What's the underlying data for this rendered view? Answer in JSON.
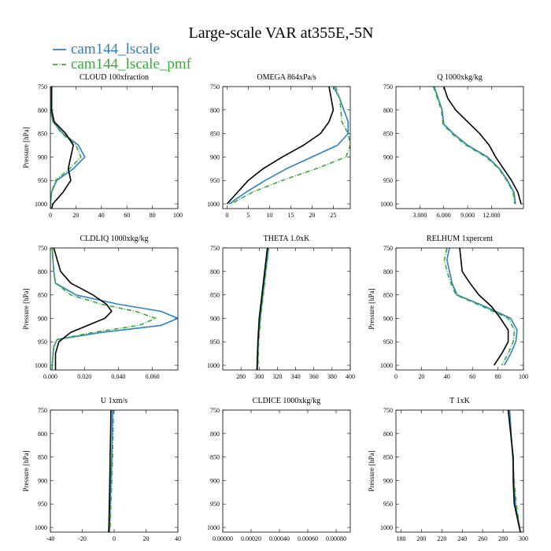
{
  "figure_title": "Large-scale VAR at355E,-5N",
  "legend": [
    {
      "name": "cam144_lscale",
      "color": "#2f7fc1",
      "dash": "none"
    },
    {
      "name": "cam144_lscale_pmf",
      "color": "#3aa83a",
      "dash": "6,2,1,2"
    }
  ],
  "reference_color": "#000000",
  "chart_data": [
    {
      "type": "line",
      "title": "CLOUD 100xfraction",
      "ylabel": "Pressure [hPa]",
      "xlim": [
        0,
        100
      ],
      "xticks": [
        0,
        20,
        40,
        60,
        80,
        100
      ],
      "xtick_labels": [
        "0",
        "20",
        "40",
        "60",
        "80",
        "100"
      ],
      "ylim": [
        1010,
        750
      ],
      "yticks": [
        750,
        800,
        850,
        900,
        950,
        1000
      ],
      "ytick_labels": [
        "750",
        "800",
        "850",
        "900",
        "950",
        "1000"
      ],
      "series": [
        {
          "role": "blue",
          "y": [
            750,
            800,
            825,
            850,
            875,
            900,
            925,
            950,
            975,
            1000,
            1010
          ],
          "x": [
            0,
            0,
            2,
            10,
            22,
            27,
            18,
            5,
            1,
            0,
            0
          ]
        },
        {
          "role": "green",
          "y": [
            750,
            800,
            825,
            850,
            875,
            900,
            925,
            950,
            975,
            1000,
            1010
          ],
          "x": [
            0,
            0,
            2,
            9,
            20,
            24,
            15,
            4,
            1,
            0,
            0
          ]
        },
        {
          "role": "black",
          "y": [
            750,
            800,
            825,
            850,
            875,
            900,
            925,
            950,
            975,
            1000,
            1010
          ],
          "x": [
            1,
            1,
            3,
            12,
            18,
            16,
            14,
            16,
            10,
            2,
            1
          ]
        }
      ]
    },
    {
      "type": "line",
      "title": "OMEGA 864xPa/s",
      "ylabel": "",
      "xlim": [
        -1,
        29
      ],
      "xticks": [
        0,
        5,
        10,
        15,
        20,
        25
      ],
      "xtick_labels": [
        "0",
        "5",
        "10",
        "15",
        "20",
        "25"
      ],
      "ylim": [
        1010,
        750
      ],
      "yticks": [
        750,
        800,
        850,
        900,
        950,
        1000
      ],
      "ytick_labels": [
        "750",
        "800",
        "850",
        "900",
        "950",
        "1000"
      ],
      "series": [
        {
          "role": "blue",
          "y": [
            750,
            775,
            800,
            825,
            850,
            875,
            900,
            925,
            950,
            975,
            1000
          ],
          "x": [
            25,
            26.5,
            27.5,
            28.5,
            28.5,
            26,
            20,
            14,
            9,
            4.5,
            0.5
          ]
        },
        {
          "role": "green",
          "y": [
            750,
            775,
            800,
            825,
            850,
            875,
            900,
            925,
            950,
            975,
            1000
          ],
          "x": [
            25.5,
            26.5,
            26.8,
            27,
            28.5,
            29,
            28,
            21,
            13,
            6,
            1
          ]
        },
        {
          "role": "black",
          "y": [
            750,
            775,
            800,
            825,
            850,
            875,
            900,
            925,
            950,
            975,
            1000
          ],
          "x": [
            24,
            24.5,
            25,
            24,
            22,
            18,
            13,
            8.5,
            5,
            2.5,
            0
          ]
        }
      ]
    },
    {
      "type": "line",
      "title": "Q 1000xkg/kg",
      "ylabel": "",
      "xlim": [
        0,
        16
      ],
      "xticks": [
        3,
        6,
        9,
        12
      ],
      "xtick_labels": [
        "3.000",
        "6.000",
        "9.000",
        "12.000"
      ],
      "ylim": [
        1010,
        750
      ],
      "yticks": [
        750,
        800,
        850,
        900,
        950,
        1000
      ],
      "ytick_labels": [
        "750",
        "800",
        "850",
        "900",
        "950",
        "1000"
      ],
      "series": [
        {
          "role": "blue",
          "y": [
            750,
            775,
            800,
            830,
            850,
            875,
            900,
            925,
            950,
            975,
            1000
          ],
          "x": [
            4.8,
            5.3,
            5.8,
            6.0,
            7.2,
            9.0,
            11.5,
            13.0,
            14.0,
            14.8,
            15.0
          ]
        },
        {
          "role": "green",
          "y": [
            750,
            775,
            800,
            830,
            850,
            875,
            900,
            925,
            950,
            975,
            1000
          ],
          "x": [
            4.7,
            5.2,
            5.7,
            5.9,
            7.0,
            8.8,
            11.3,
            12.9,
            13.9,
            14.7,
            14.9
          ]
        },
        {
          "role": "black",
          "y": [
            750,
            775,
            800,
            825,
            850,
            875,
            900,
            925,
            950,
            975,
            1000
          ],
          "x": [
            6.0,
            6.5,
            7.5,
            9.0,
            10.5,
            11.7,
            12.5,
            13.5,
            14.5,
            15.3,
            15.7
          ]
        }
      ]
    },
    {
      "type": "line",
      "title": "CLDLIQ 1000xkg/kg",
      "ylabel": "Pressure [hPa]",
      "xlim": [
        0,
        0.075
      ],
      "xticks": [
        0,
        0.02,
        0.04,
        0.06
      ],
      "xtick_labels": [
        "0.000",
        "0.020",
        "0.040",
        "0.060"
      ],
      "ylim": [
        1010,
        750
      ],
      "yticks": [
        750,
        800,
        850,
        900,
        950,
        1000
      ],
      "ytick_labels": [
        "750",
        "800",
        "850",
        "900",
        "950",
        "1000"
      ],
      "series": [
        {
          "role": "blue",
          "y": [
            750,
            800,
            825,
            850,
            870,
            885,
            900,
            915,
            930,
            945,
            960,
            1000,
            1010
          ],
          "x": [
            0.001,
            0.002,
            0.003,
            0.015,
            0.04,
            0.065,
            0.075,
            0.065,
            0.03,
            0.004,
            0.002,
            0.001,
            0.001
          ]
        },
        {
          "role": "green",
          "y": [
            750,
            800,
            825,
            850,
            870,
            885,
            900,
            915,
            930,
            945,
            960,
            1000,
            1010
          ],
          "x": [
            0.001,
            0.002,
            0.003,
            0.012,
            0.03,
            0.05,
            0.062,
            0.052,
            0.025,
            0.004,
            0.002,
            0.001,
            0.001
          ]
        },
        {
          "role": "black",
          "y": [
            750,
            800,
            825,
            850,
            870,
            885,
            900,
            915,
            930,
            950,
            975,
            1000,
            1010
          ],
          "x": [
            0.002,
            0.006,
            0.012,
            0.025,
            0.033,
            0.036,
            0.032,
            0.022,
            0.012,
            0.005,
            0.003,
            0.003,
            0.003
          ]
        }
      ]
    },
    {
      "type": "line",
      "title": "THETA 1.0xK",
      "ylabel": "",
      "xlim": [
        260,
        400
      ],
      "xticks": [
        280,
        300,
        320,
        340,
        360,
        380,
        400
      ],
      "xtick_labels": [
        "280",
        "300",
        "320",
        "340",
        "360",
        "380",
        "400"
      ],
      "ylim": [
        1010,
        750
      ],
      "yticks": [
        750,
        800,
        850,
        900,
        950,
        1000
      ],
      "ytick_labels": [
        "750",
        "800",
        "850",
        "900",
        "950",
        "1000"
      ],
      "series": [
        {
          "role": "blue",
          "y": [
            750,
            800,
            850,
            900,
            950,
            1010
          ],
          "x": [
            310,
            307,
            304,
            301,
            299,
            298
          ]
        },
        {
          "role": "green",
          "y": [
            750,
            800,
            850,
            900,
            950,
            1010
          ],
          "x": [
            310.5,
            307.5,
            304.5,
            301.5,
            299.5,
            298.5
          ]
        },
        {
          "role": "black",
          "y": [
            750,
            800,
            850,
            900,
            950,
            1010
          ],
          "x": [
            309,
            306,
            303,
            300,
            298.5,
            297.5
          ]
        }
      ]
    },
    {
      "type": "line",
      "title": "RELHUM 1xpercent",
      "ylabel": "Pressure [hPa]",
      "xlim": [
        0,
        100
      ],
      "xticks": [
        0,
        20,
        40,
        60,
        80,
        100
      ],
      "xtick_labels": [
        "0",
        "20",
        "40",
        "60",
        "80",
        "100"
      ],
      "ylim": [
        1010,
        750
      ],
      "yticks": [
        750,
        800,
        850,
        900,
        950,
        1000
      ],
      "ytick_labels": [
        "750",
        "800",
        "850",
        "900",
        "950",
        "1000"
      ],
      "series": [
        {
          "role": "blue",
          "y": [
            750,
            775,
            800,
            825,
            850,
            875,
            900,
            925,
            950,
            975,
            1000
          ],
          "x": [
            42,
            40,
            42,
            44,
            48,
            70,
            90,
            95,
            94,
            90,
            85
          ]
        },
        {
          "role": "green",
          "y": [
            750,
            775,
            800,
            825,
            850,
            875,
            900,
            925,
            950,
            975,
            1000
          ],
          "x": [
            40,
            38,
            40,
            43,
            47,
            68,
            88,
            93,
            92,
            88,
            83
          ]
        },
        {
          "role": "black",
          "y": [
            750,
            775,
            800,
            825,
            850,
            875,
            900,
            925,
            950,
            975,
            1000
          ],
          "x": [
            50,
            51,
            52,
            58,
            65,
            75,
            82,
            88,
            88,
            83,
            77
          ]
        }
      ]
    },
    {
      "type": "line",
      "title": "U 1xm/s",
      "ylabel": "Pressure [hPa]",
      "xlim": [
        -40,
        40
      ],
      "xticks": [
        -40,
        -20,
        0,
        20,
        40
      ],
      "xtick_labels": [
        "-40",
        "-20",
        "0",
        "20",
        "40"
      ],
      "ylim": [
        1010,
        750
      ],
      "yticks": [
        750,
        800,
        850,
        900,
        950,
        1000
      ],
      "ytick_labels": [
        "750",
        "800",
        "850",
        "900",
        "950",
        "1000"
      ],
      "series": [
        {
          "role": "blue",
          "y": [
            750,
            800,
            850,
            900,
            950,
            1000,
            1010
          ],
          "x": [
            -1,
            -1.2,
            -1.5,
            -2,
            -2.5,
            -2.8,
            -3
          ]
        },
        {
          "role": "green",
          "y": [
            750,
            800,
            850,
            900,
            950,
            1000,
            1010
          ],
          "x": [
            -0.5,
            -0.7,
            -1,
            -1.5,
            -2,
            -2.5,
            -2.7
          ]
        },
        {
          "role": "black",
          "y": [
            750,
            800,
            850,
            900,
            950,
            1000,
            1010
          ],
          "x": [
            -2,
            -2.2,
            -2.5,
            -2.7,
            -3,
            -3.3,
            -3.5
          ]
        }
      ]
    },
    {
      "type": "line",
      "title": "CLDICE 1000xkg/kg",
      "ylabel": "",
      "xlim": [
        0,
        0.0009
      ],
      "xticks": [
        0,
        0.0002,
        0.0004,
        0.0006,
        0.0008
      ],
      "xtick_labels": [
        "0.00000",
        "0.00020",
        "0.00040",
        "0.00060",
        "0.00080"
      ],
      "ylim": [
        1010,
        750
      ],
      "yticks": [
        750,
        800,
        850,
        900,
        950,
        1000
      ],
      "ytick_labels": [
        "750",
        "800",
        "850",
        "900",
        "950",
        "1000"
      ],
      "series": []
    },
    {
      "type": "line",
      "title": "T 1xK",
      "ylabel": "Pressure [hPa]",
      "xlim": [
        175,
        300
      ],
      "xticks": [
        180,
        200,
        220,
        240,
        260,
        280,
        300
      ],
      "xtick_labels": [
        "180",
        "200",
        "220",
        "240",
        "260",
        "280",
        "300"
      ],
      "ylim": [
        1010,
        750
      ],
      "yticks": [
        750,
        800,
        850,
        900,
        950,
        1000
      ],
      "ytick_labels": [
        "750",
        "800",
        "850",
        "900",
        "950",
        "1000"
      ],
      "series": [
        {
          "role": "blue",
          "y": [
            750,
            800,
            850,
            900,
            950,
            1010
          ],
          "x": [
            286.5,
            288,
            289.5,
            290.5,
            292,
            297
          ]
        },
        {
          "role": "green",
          "y": [
            750,
            800,
            850,
            900,
            950,
            1010
          ],
          "x": [
            285.5,
            287.5,
            289.5,
            291,
            293,
            297
          ]
        },
        {
          "role": "black",
          "y": [
            750,
            800,
            850,
            900,
            950,
            1010
          ],
          "x": [
            285,
            287.5,
            290,
            290,
            291,
            297
          ]
        }
      ]
    }
  ]
}
